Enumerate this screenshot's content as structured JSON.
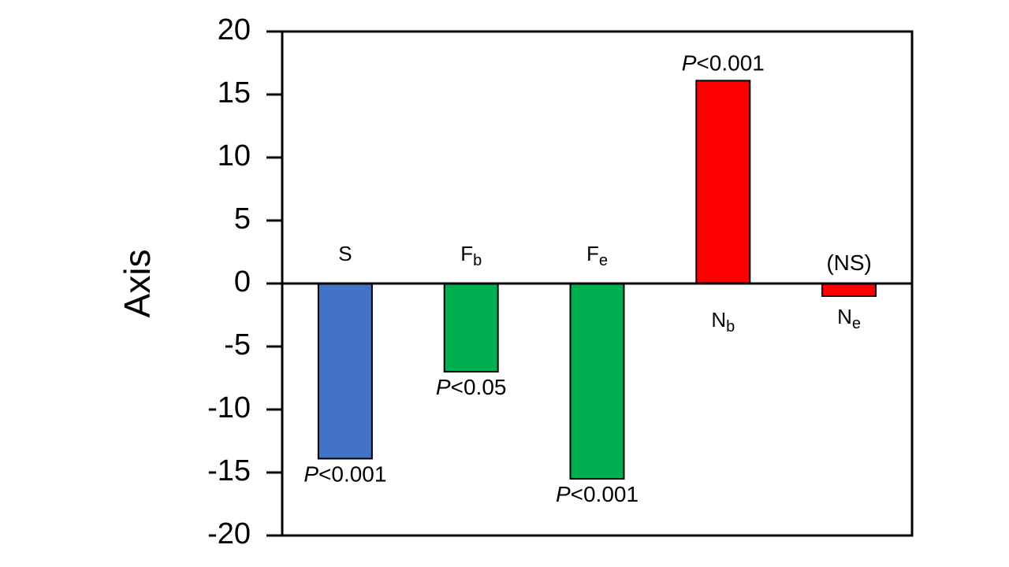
{
  "chart_data": {
    "type": "bar",
    "y_label": "Axis",
    "categories": [
      "S",
      "F",
      "F",
      "N",
      "N"
    ],
    "category_subscripts": [
      null,
      "b",
      "e",
      "b",
      "e"
    ],
    "values": [
      -13.9,
      -7,
      -15.5,
      16.1,
      -1
    ],
    "colors": [
      "#4472c4",
      "#00b050",
      "#00b050",
      "#ff0000",
      "#ff0000"
    ],
    "annotations": [
      {
        "symbol": "P",
        "text": "<0.001"
      },
      {
        "symbol": "P",
        "text": "<0.05"
      },
      {
        "symbol": "P",
        "text": "<0.001"
      },
      {
        "symbol": "P",
        "text": "<0.001"
      },
      {
        "text": "(NS)"
      }
    ],
    "ylim": [
      -20,
      20
    ],
    "yticks": [
      -20,
      -15,
      -10,
      -5,
      0,
      5,
      10,
      15,
      20
    ]
  }
}
